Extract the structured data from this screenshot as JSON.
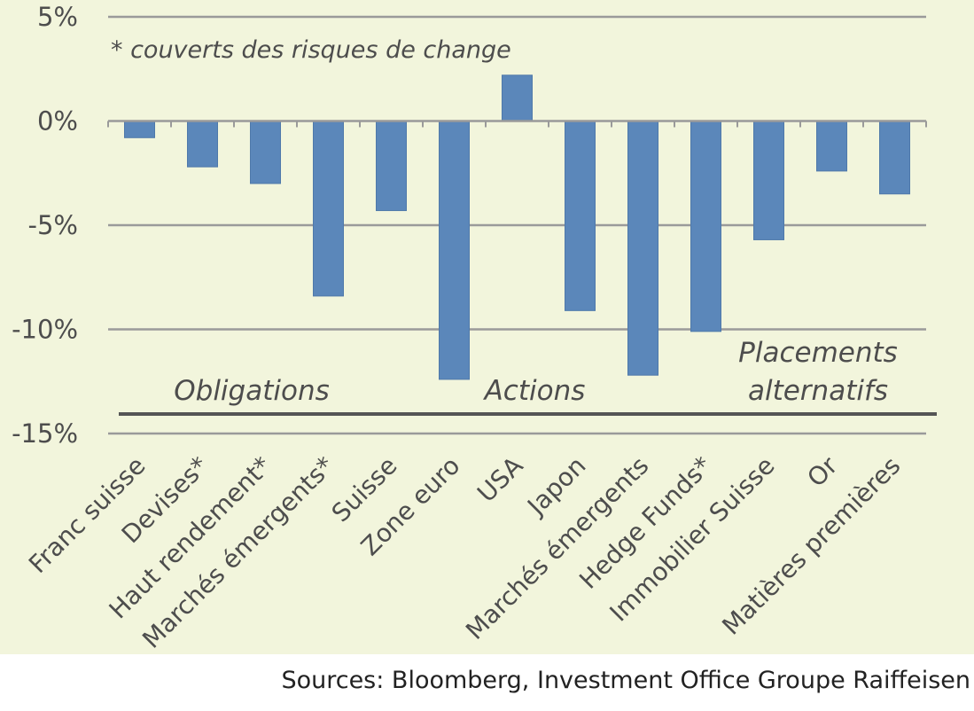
{
  "chart_data": {
    "type": "bar",
    "categories": [
      "Franc suisse",
      "Devises*",
      "Haut rendement*",
      "Marchés émergents*",
      "Suisse",
      "Zone euro",
      "USA",
      "Japon",
      "Marchés émergents",
      "Hedge Funds*",
      "Immobilier Suisse",
      "Or",
      "Matières premières"
    ],
    "values": [
      -0.8,
      -2.2,
      -3.0,
      -8.4,
      -4.3,
      -12.4,
      2.2,
      -9.1,
      -12.2,
      -10.1,
      -5.7,
      -2.4,
      -3.5
    ],
    "ylim": [
      -15,
      5
    ],
    "yticks": [
      5,
      0,
      -5,
      -10,
      -15
    ],
    "ytick_labels": [
      "5%",
      "0%",
      "-5%",
      "-10%",
      "-15%"
    ],
    "grid": true,
    "bar_color": "#5b87ba",
    "annotation": "* couverts des risques de change",
    "groups": [
      {
        "label_lines": [
          "Obligations"
        ],
        "from": 0,
        "to": 3
      },
      {
        "label_lines": [
          "Actions"
        ],
        "from": 4,
        "to": 8
      },
      {
        "label_lines": [
          "Placements",
          "alternatifs"
        ],
        "from": 9,
        "to": 12
      }
    ]
  },
  "source": "Sources: Bloomberg, Investment Office Groupe Raiffeisen"
}
